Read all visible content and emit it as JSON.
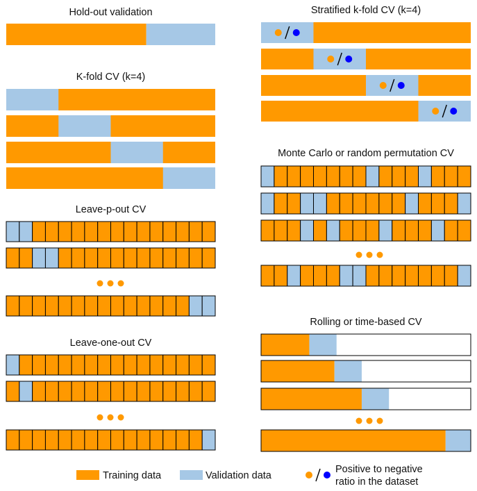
{
  "colors": {
    "training": "#FF9900",
    "validation": "#A6C8E6",
    "border": "#000000",
    "positive": "#FF9900",
    "negative": "#0000FF"
  },
  "panels": {
    "holdout": {
      "title": "Hold-out validation",
      "validation_fraction": 0.33
    },
    "kfold": {
      "title": "K-fold CV (k=4)",
      "k": 4
    },
    "leave_p_out": {
      "title": "Leave-p-out CV",
      "cells_per_row": 16,
      "rows": [
        [
          0,
          1
        ],
        [
          2,
          3
        ],
        [
          14,
          15
        ]
      ]
    },
    "leave_one_out": {
      "title": "Leave-one-out CV",
      "cells_per_row": 16,
      "rows": [
        [
          0
        ],
        [
          1
        ],
        [
          15
        ]
      ]
    },
    "stratified": {
      "title": "Stratified k-fold CV (k=4)",
      "k": 4
    },
    "monte_carlo": {
      "title": "Monte Carlo or random permutation CV",
      "cells_per_row": 16,
      "rows": [
        [
          0,
          8,
          12
        ],
        [
          0,
          3,
          4,
          11,
          15
        ],
        [
          3,
          5,
          9,
          13
        ],
        [
          2,
          6,
          7,
          15
        ]
      ]
    },
    "rolling": {
      "title": "Rolling or time-based CV",
      "windows": [
        [
          0.23,
          0.36
        ],
        [
          0.35,
          0.48
        ],
        [
          0.48,
          0.61
        ],
        [
          0.88,
          1.0
        ]
      ]
    }
  },
  "legend": {
    "training_label": "Training data",
    "validation_label": "Validation data",
    "ratio_line1": "Positive to negative",
    "ratio_line2": "ratio in the dataset"
  }
}
